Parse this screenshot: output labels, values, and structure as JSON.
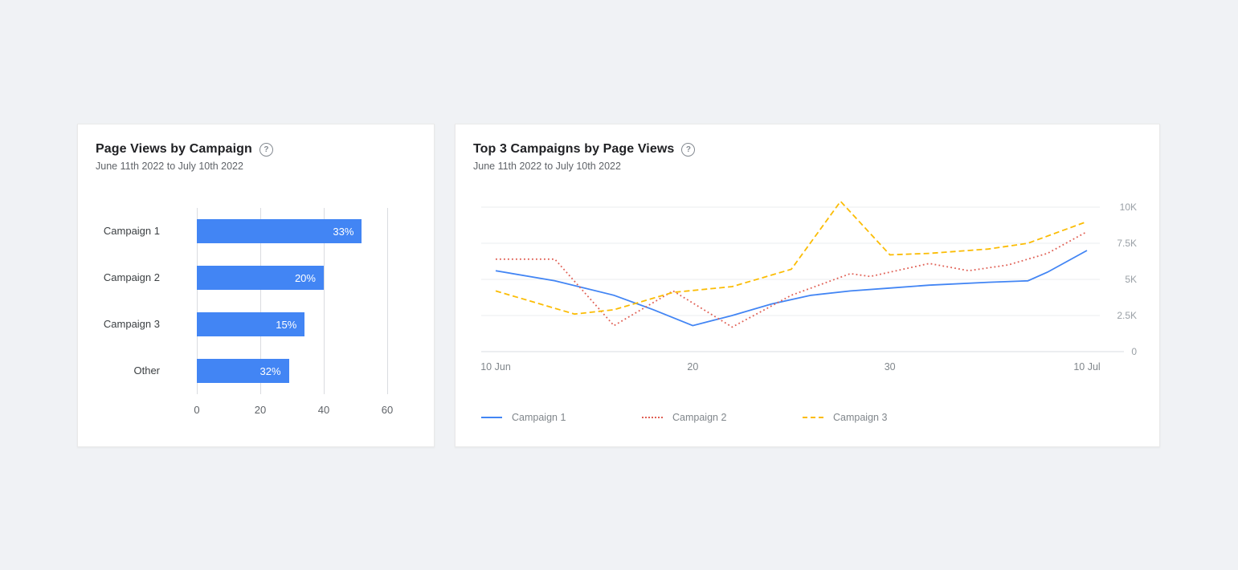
{
  "page": {
    "background": "#f0f2f5",
    "card_background": "#ffffff"
  },
  "icons": {
    "help": "?"
  },
  "cards": {
    "bar": {
      "title": "Page Views by Campaign",
      "subtitle": "June 11th 2022 to July 10th 2022"
    },
    "line": {
      "title": "Top 3 Campaigns by Page Views",
      "subtitle": "June 11th 2022 to July 10th 2022"
    }
  },
  "chart_data": [
    {
      "type": "bar",
      "orientation": "horizontal",
      "title": "Page Views by Campaign",
      "subtitle": "June 11th 2022 to July 10th 2022",
      "categories": [
        "Campaign 1",
        "Campaign 2",
        "Campaign 3",
        "Other"
      ],
      "values": [
        52,
        40,
        34,
        29
      ],
      "value_labels": [
        "33%",
        "20%",
        "15%",
        "32%"
      ],
      "xlim": [
        0,
        60
      ],
      "x_ticks": [
        0,
        20,
        40,
        60
      ],
      "bar_color": "#4285f4",
      "grid": true,
      "legend_position": "none"
    },
    {
      "type": "line",
      "title": "Top 3 Campaigns by Page Views",
      "subtitle": "June 11th 2022 to July 10th 2022",
      "xlim": [
        0,
        30
      ],
      "ylim": [
        0,
        10500
      ],
      "grid": true,
      "legend_position": "bottom",
      "x_ticks": [
        {
          "day": 0,
          "label": "10 Jun"
        },
        {
          "day": 10,
          "label": "20"
        },
        {
          "day": 20,
          "label": "30"
        },
        {
          "day": 30,
          "label": "10 Jul"
        }
      ],
      "y_ticks": [
        {
          "value": 0,
          "label": "0"
        },
        {
          "value": 2500,
          "label": "2.5K"
        },
        {
          "value": 5000,
          "label": "5K"
        },
        {
          "value": 7500,
          "label": "7.5K"
        },
        {
          "value": 10000,
          "label": "10K"
        }
      ],
      "series": [
        {
          "name": "Campaign 1",
          "color": "#4285f4",
          "line_style": "solid",
          "points": [
            [
              0,
              5600
            ],
            [
              3,
              4900
            ],
            [
              6,
              3900
            ],
            [
              8,
              2900
            ],
            [
              10,
              1800
            ],
            [
              12,
              2500
            ],
            [
              14,
              3300
            ],
            [
              16,
              3900
            ],
            [
              18,
              4200
            ],
            [
              20,
              4400
            ],
            [
              22,
              4600
            ],
            [
              25,
              4800
            ],
            [
              27,
              4900
            ],
            [
              28,
              5500
            ],
            [
              30,
              7000
            ]
          ]
        },
        {
          "name": "Campaign 2",
          "color": "#e06055",
          "line_style": "dotted",
          "points": [
            [
              0,
              6400
            ],
            [
              3,
              6400
            ],
            [
              6,
              1800
            ],
            [
              9,
              4200
            ],
            [
              12,
              1700
            ],
            [
              15,
              3900
            ],
            [
              18,
              5400
            ],
            [
              19,
              5200
            ],
            [
              22,
              6100
            ],
            [
              24,
              5600
            ],
            [
              26,
              6000
            ],
            [
              28,
              6800
            ],
            [
              30,
              8300
            ]
          ]
        },
        {
          "name": "Campaign 3",
          "color": "#fbbc04",
          "line_style": "dashed",
          "points": [
            [
              0,
              4200
            ],
            [
              4,
              2600
            ],
            [
              6,
              2900
            ],
            [
              9,
              4100
            ],
            [
              12,
              4500
            ],
            [
              15,
              5700
            ],
            [
              17.5,
              10400
            ],
            [
              20,
              6700
            ],
            [
              22,
              6800
            ],
            [
              25,
              7100
            ],
            [
              27,
              7500
            ],
            [
              30,
              9000
            ]
          ]
        }
      ]
    }
  ]
}
